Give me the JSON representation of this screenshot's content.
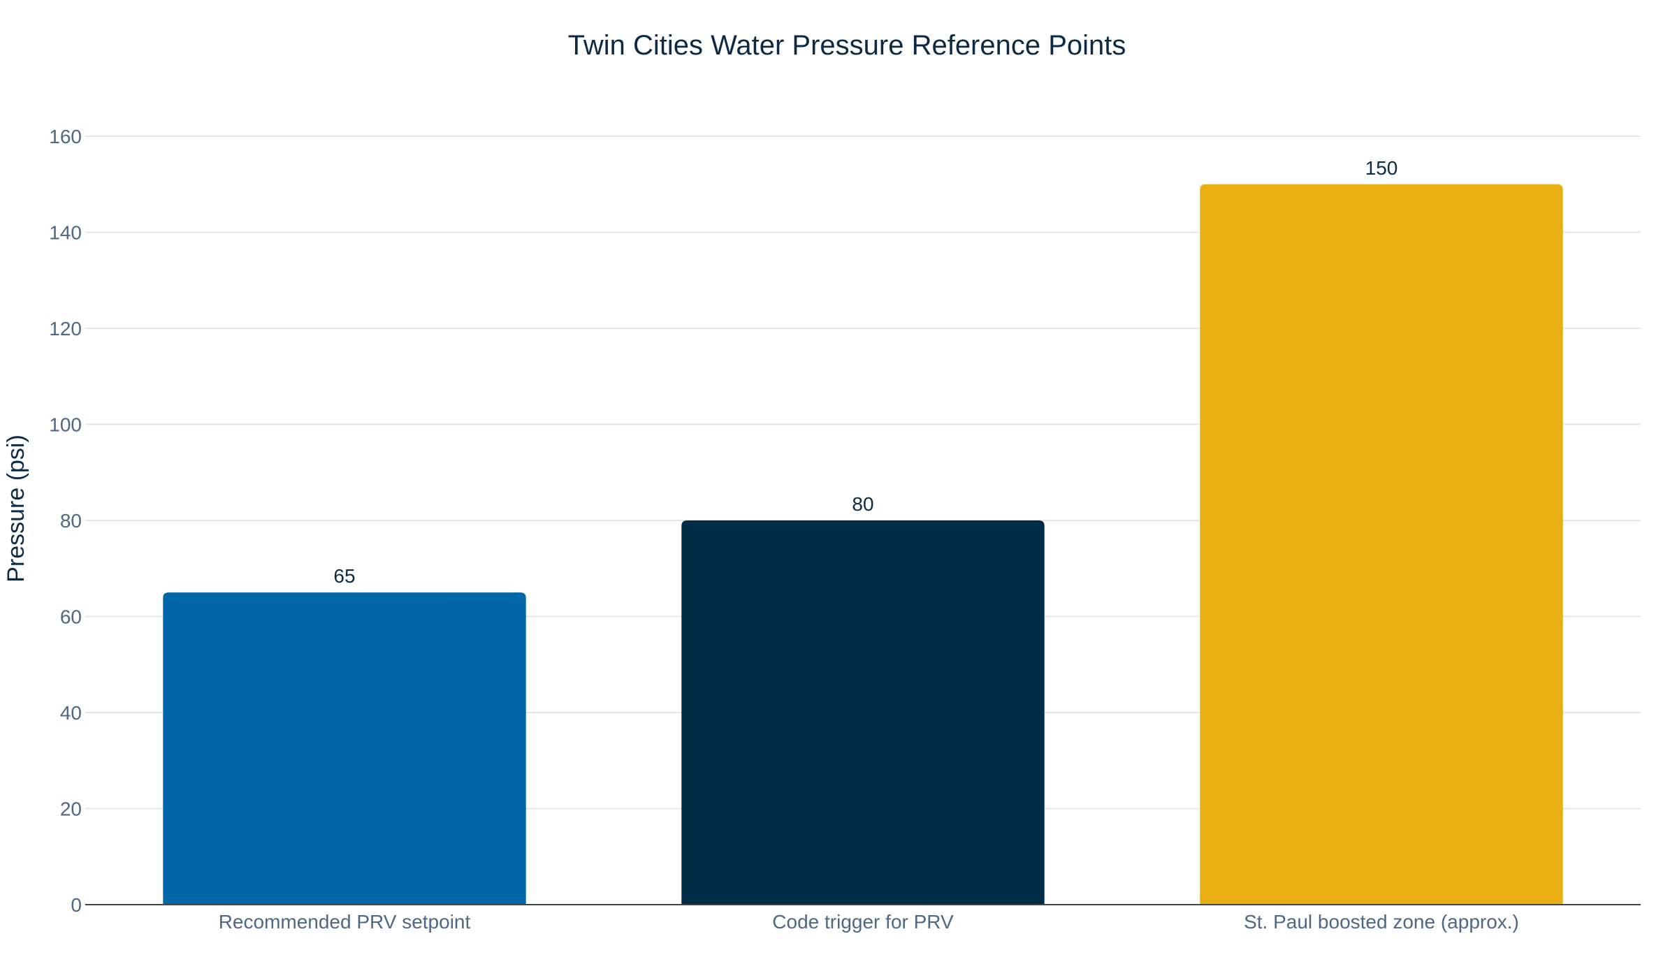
{
  "chart_data": {
    "type": "bar",
    "title": "Twin Cities Water Pressure Reference Points",
    "xlabel": "",
    "ylabel": "Pressure (psi)",
    "ylim": [
      0,
      160
    ],
    "yticks": [
      0,
      20,
      40,
      60,
      80,
      100,
      120,
      140,
      160
    ],
    "grid": true,
    "legend": "none",
    "categories": [
      "Recommended PRV setpoint",
      "Code trigger for PRV",
      "St. Paul boosted zone (approx.)"
    ],
    "values": [
      65,
      80,
      150
    ],
    "data_labels": [
      "65",
      "80",
      "150"
    ],
    "colors": [
      "#0066a8",
      "#002c46",
      "#e8ae12"
    ]
  }
}
